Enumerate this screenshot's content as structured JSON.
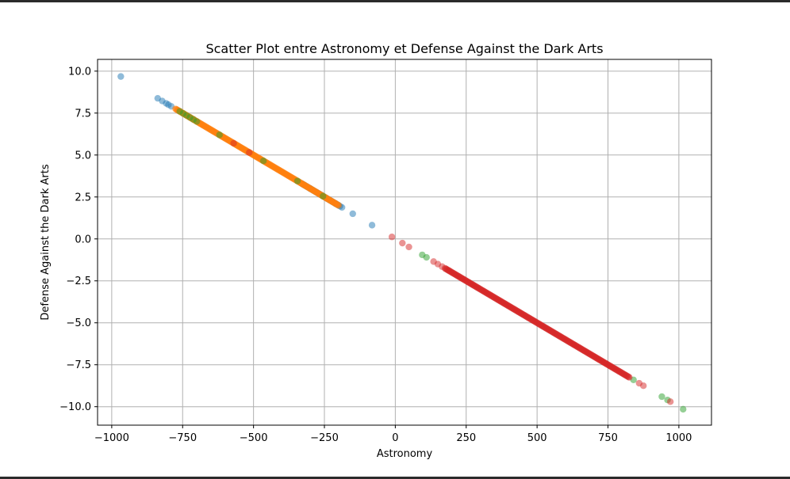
{
  "chart_data": {
    "type": "scatter",
    "title": "Scatter Plot entre Astronomy et Defense Against the Dark Arts",
    "xlabel": "Astronomy",
    "ylabel": "Defense Against the Dark Arts",
    "xlim": [
      -1050,
      1115
    ],
    "ylim": [
      -11.1,
      10.7
    ],
    "grid": true,
    "x_ticks": [
      -1000,
      -750,
      -500,
      -250,
      0,
      250,
      500,
      750,
      1000
    ],
    "x_tick_labels": [
      "−1000",
      "−750",
      "−500",
      "−250",
      "0",
      "250",
      "500",
      "750",
      "1000"
    ],
    "y_ticks": [
      10.0,
      7.5,
      5.0,
      2.5,
      0.0,
      -2.5,
      -5.0,
      -7.5,
      -10.0
    ],
    "y_tick_labels": [
      "10.0",
      "7.5",
      "5.0",
      "2.5",
      "0.0",
      "−2.5",
      "−5.0",
      "−7.5",
      "−10.0"
    ],
    "marker_alpha": 0.5,
    "series": [
      {
        "color": "#1f77b4",
        "points": [
          [
            -968,
            9.68
          ],
          [
            -838,
            8.38
          ],
          [
            -822,
            8.22
          ],
          [
            -808,
            8.08
          ],
          [
            -800,
            8.0
          ],
          [
            -790,
            7.9
          ],
          [
            -300,
            3.0
          ],
          [
            -210,
            2.1
          ],
          [
            -195,
            1.95
          ],
          [
            -188,
            1.88
          ],
          [
            -150,
            1.5
          ],
          [
            -82,
            0.82
          ]
        ],
        "range": [
          -330,
          -200,
          30
        ]
      },
      {
        "color": "#ff7f0e",
        "points": [],
        "range": [
          -775,
          -200,
          230
        ]
      },
      {
        "color": "#2ca02c",
        "points": [
          [
            -620,
            6.2
          ],
          [
            -465,
            4.65
          ],
          [
            -345,
            3.45
          ],
          [
            -255,
            2.55
          ],
          [
            95,
            -0.95
          ],
          [
            110,
            -1.1
          ],
          [
            840,
            -8.4
          ],
          [
            940,
            -9.4
          ],
          [
            960,
            -9.6
          ],
          [
            1015,
            -10.15
          ]
        ],
        "range": [
          -760,
          -700,
          6
        ]
      },
      {
        "color": "#d62728",
        "points": [
          [
            -570,
            5.7
          ],
          [
            -515,
            5.15
          ],
          [
            -12,
            0.12
          ],
          [
            25,
            -0.25
          ],
          [
            48,
            -0.48
          ],
          [
            135,
            -1.35
          ],
          [
            150,
            -1.5
          ],
          [
            165,
            -1.65
          ],
          [
            860,
            -8.6
          ],
          [
            875,
            -8.75
          ],
          [
            970,
            -9.7
          ]
        ],
        "range": [
          175,
          825,
          240
        ]
      }
    ]
  }
}
